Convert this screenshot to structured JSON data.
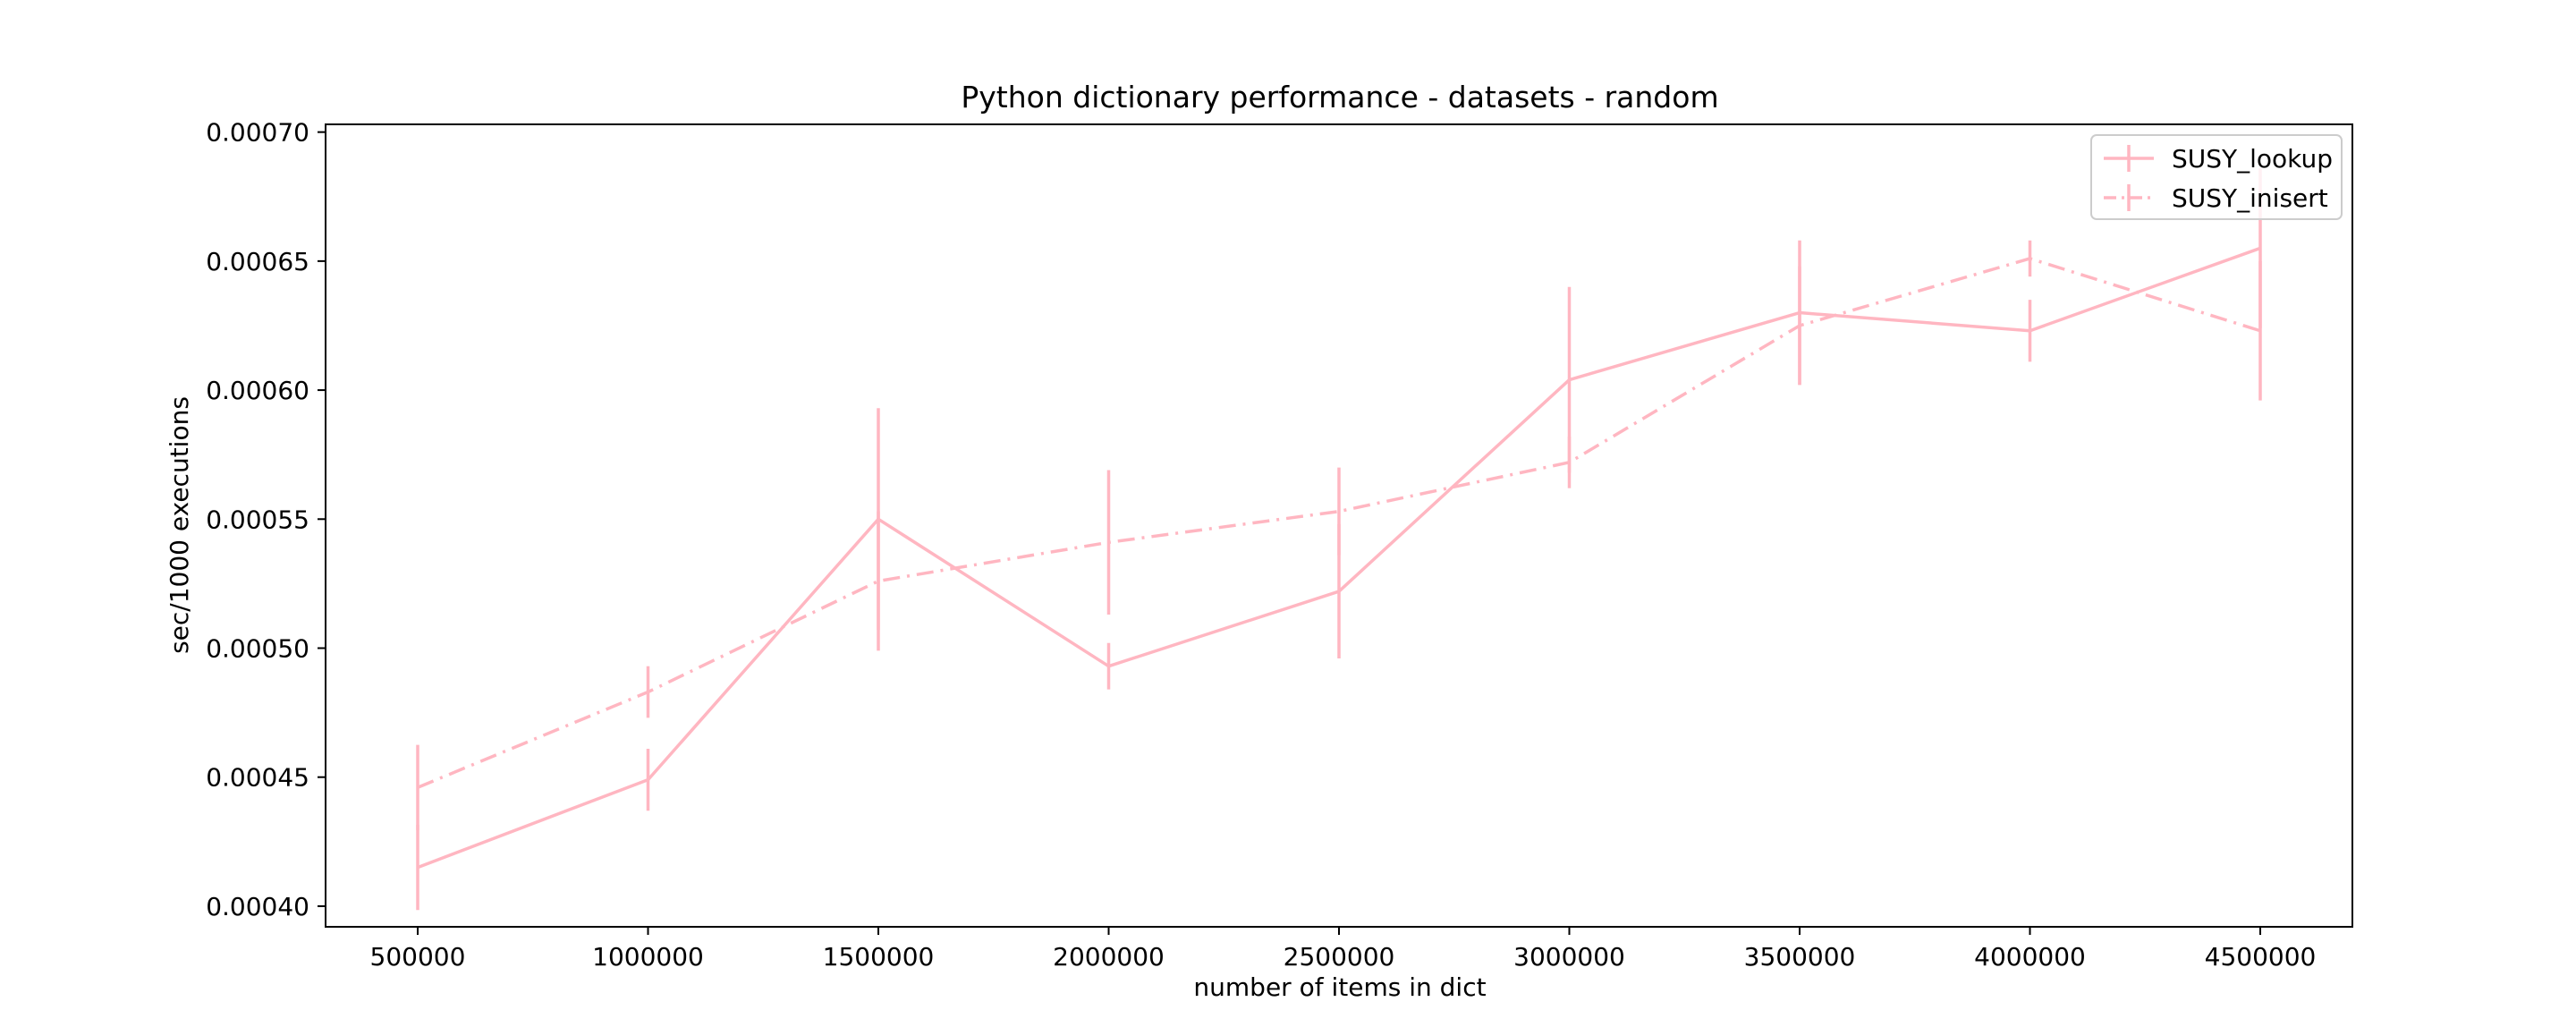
{
  "chart_data": {
    "type": "line",
    "title": "Python dictionary performance - datasets - random",
    "xlabel": "number of items in dict",
    "ylabel": "sec/1000 executions",
    "x": [
      500000,
      1000000,
      1500000,
      2000000,
      2500000,
      3000000,
      3500000,
      4000000,
      4500000
    ],
    "x_tick_labels": [
      "500000",
      "1000000",
      "1500000",
      "2000000",
      "2500000",
      "3000000",
      "3500000",
      "4000000",
      "4500000"
    ],
    "y_ticks": [
      0.0004,
      0.00045,
      0.0005,
      0.00055,
      0.0006,
      0.00065,
      0.0007
    ],
    "y_tick_labels": [
      "0.00040",
      "0.00045",
      "0.00050",
      "0.00055",
      "0.00060",
      "0.00065",
      "0.00070"
    ],
    "xlim": [
      300000,
      4700000
    ],
    "ylim": [
      0.000392,
      0.000703
    ],
    "grid": false,
    "legend_position": "top-right",
    "series": [
      {
        "name": "SUSY_lookup",
        "style": "solid",
        "color": "#ffb6c1",
        "values": [
          0.000415,
          0.000449,
          0.00055,
          0.000493,
          0.000522,
          0.000604,
          0.00063,
          0.000623,
          0.000655
        ],
        "errors": [
          1.65e-05,
          1.2e-05,
          4.3e-05,
          9e-06,
          2.6e-05,
          3.6e-05,
          2.8e-05,
          1.2e-05,
          3.1e-05
        ]
      },
      {
        "name": "SUSY_inisert",
        "style": "dashdot",
        "color": "#ffb6c1",
        "values": [
          0.000446,
          0.000483,
          0.000526,
          0.000541,
          0.000553,
          0.000572,
          0.000625,
          0.000651,
          0.000623
        ],
        "errors": [
          1.65e-05,
          1e-05,
          2.7e-05,
          2.8e-05,
          1.7e-05,
          1e-05,
          2.3e-05,
          7e-06,
          2.7e-05
        ]
      }
    ]
  }
}
